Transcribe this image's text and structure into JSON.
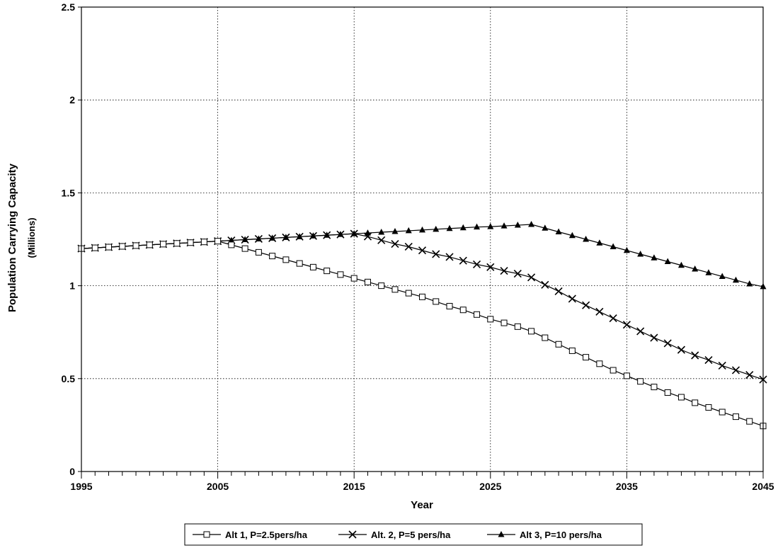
{
  "chart_data": {
    "type": "line",
    "title": "",
    "xlabel": "Year",
    "ylabel": "Population Carrying Capacity",
    "ylabel_sub": "(Millions)",
    "xlim": [
      1995,
      2045
    ],
    "ylim": [
      0,
      2.5
    ],
    "x_ticks": [
      1995,
      2005,
      2015,
      2025,
      2035,
      2045
    ],
    "x_tick_labels": [
      "1995",
      "2005",
      "2015",
      "2025",
      "2035",
      "2045"
    ],
    "y_ticks": [
      0,
      0.5,
      1,
      1.5,
      2,
      2.5
    ],
    "y_tick_labels": [
      "0",
      "0.5",
      "1",
      "1.5",
      "2",
      "2.5"
    ],
    "grid": true,
    "legend_position": "bottom-center",
    "x": [
      1995,
      1996,
      1997,
      1998,
      1999,
      2000,
      2001,
      2002,
      2003,
      2004,
      2005,
      2006,
      2007,
      2008,
      2009,
      2010,
      2011,
      2012,
      2013,
      2014,
      2015,
      2016,
      2017,
      2018,
      2019,
      2020,
      2021,
      2022,
      2023,
      2024,
      2025,
      2026,
      2027,
      2028,
      2029,
      2030,
      2031,
      2032,
      2033,
      2034,
      2035,
      2036,
      2037,
      2038,
      2039,
      2040,
      2041,
      2042,
      2043,
      2044,
      2045
    ],
    "series": [
      {
        "name": "Alt 1, P=2.5pers/ha",
        "marker": "square",
        "color": "#000000",
        "values": [
          1.2,
          1.204,
          1.208,
          1.212,
          1.216,
          1.22,
          1.224,
          1.228,
          1.232,
          1.236,
          1.24,
          1.22,
          1.2,
          1.18,
          1.16,
          1.14,
          1.12,
          1.1,
          1.08,
          1.06,
          1.04,
          1.02,
          1.0,
          0.98,
          0.96,
          0.94,
          0.915,
          0.89,
          0.87,
          0.845,
          0.82,
          0.8,
          0.78,
          0.755,
          0.72,
          0.685,
          0.65,
          0.615,
          0.58,
          0.545,
          0.515,
          0.485,
          0.455,
          0.425,
          0.4,
          0.37,
          0.345,
          0.32,
          0.295,
          0.27,
          0.245
        ]
      },
      {
        "name": "Alt. 2, P=5 pers/ha",
        "marker": "x",
        "color": "#000000",
        "values": [
          1.2,
          1.204,
          1.208,
          1.212,
          1.216,
          1.22,
          1.224,
          1.228,
          1.232,
          1.236,
          1.24,
          1.244,
          1.248,
          1.252,
          1.256,
          1.26,
          1.264,
          1.268,
          1.272,
          1.276,
          1.28,
          1.265,
          1.245,
          1.225,
          1.21,
          1.19,
          1.17,
          1.155,
          1.135,
          1.115,
          1.1,
          1.08,
          1.065,
          1.045,
          1.005,
          0.97,
          0.93,
          0.895,
          0.86,
          0.825,
          0.79,
          0.755,
          0.72,
          0.69,
          0.655,
          0.625,
          0.6,
          0.57,
          0.545,
          0.52,
          0.495
        ]
      },
      {
        "name": "Alt 3, P=10 pers/ha",
        "marker": "triangle",
        "color": "#000000",
        "values": [
          1.2,
          1.204,
          1.208,
          1.212,
          1.216,
          1.22,
          1.224,
          1.228,
          1.232,
          1.236,
          1.24,
          1.244,
          1.248,
          1.252,
          1.256,
          1.26,
          1.264,
          1.268,
          1.272,
          1.276,
          1.28,
          1.284,
          1.288,
          1.292,
          1.296,
          1.3,
          1.304,
          1.308,
          1.312,
          1.316,
          1.318,
          1.322,
          1.326,
          1.33,
          1.31,
          1.29,
          1.27,
          1.25,
          1.23,
          1.21,
          1.19,
          1.17,
          1.15,
          1.13,
          1.11,
          1.09,
          1.07,
          1.05,
          1.03,
          1.01,
          0.995
        ]
      }
    ]
  }
}
